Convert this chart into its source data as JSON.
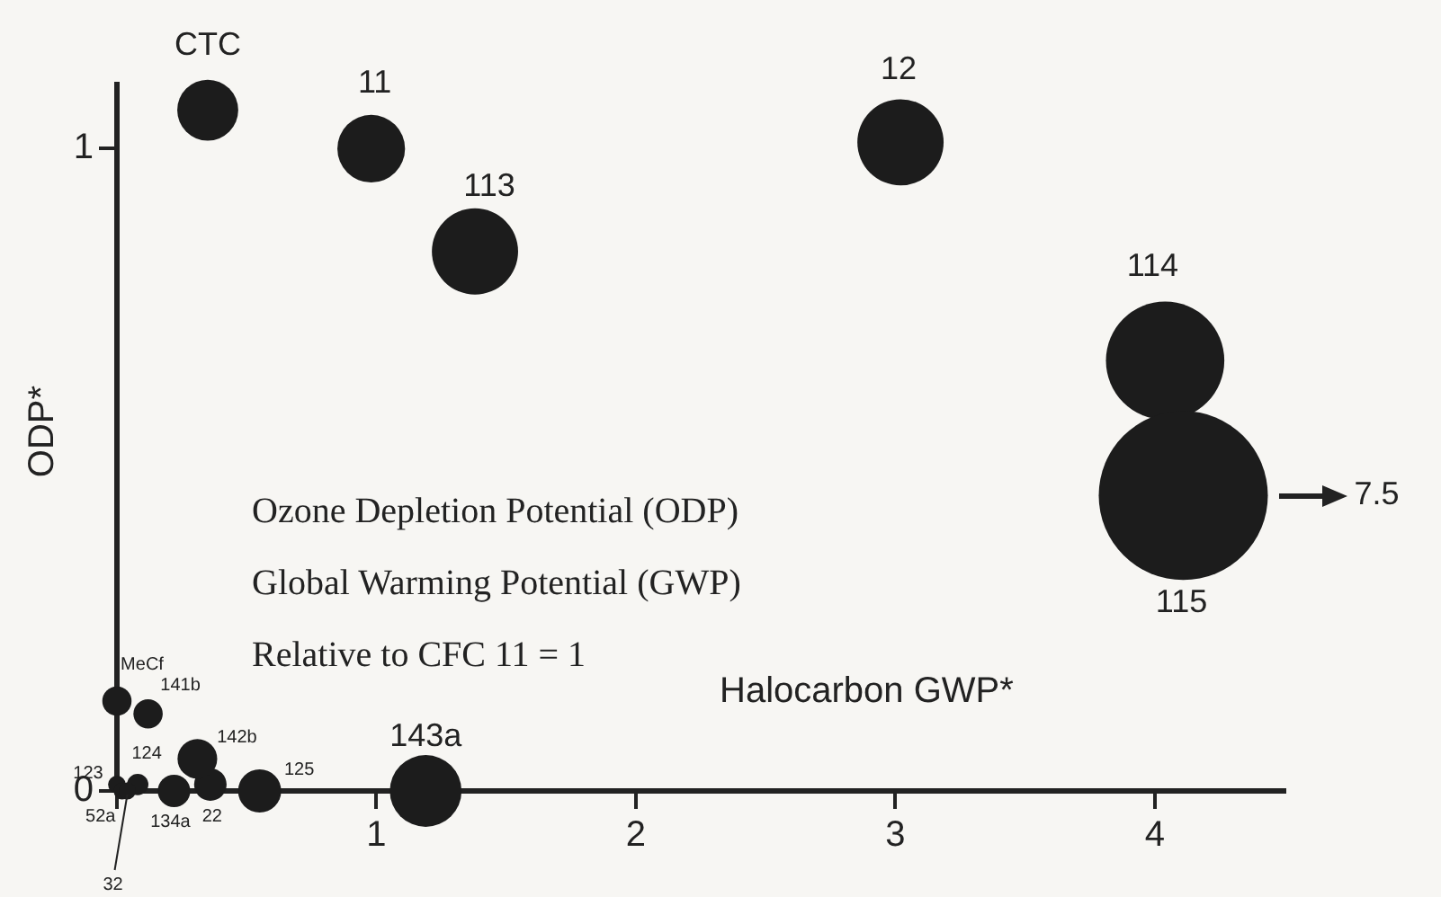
{
  "chart_data": {
    "type": "bubble",
    "xlabel": "Halocarbon GWP*",
    "ylabel": "ODP*",
    "xlim": [
      0,
      4.5
    ],
    "ylim": [
      0,
      1.1
    ],
    "xticks": [
      {
        "value": 0,
        "label": null
      },
      1,
      2,
      3,
      4
    ],
    "yticks": [
      0,
      1
    ],
    "grid": false,
    "legend": false,
    "series": [
      {
        "color": "#1c1c1c",
        "x": [
          0.35,
          0.98,
          1.38,
          3.02,
          4.04,
          4.11,
          0.0,
          0.12,
          0.0,
          0.08,
          0.02,
          0.04,
          0.22,
          0.36,
          0.31,
          0.55,
          1.19
        ],
        "values": [
          1.06,
          1.0,
          0.84,
          1.01,
          0.67,
          0.46,
          0.14,
          0.12,
          0.01,
          0.01,
          0,
          0,
          0,
          0.01,
          0.05,
          0,
          0
        ],
        "sizes": [
          0.13,
          0.16,
          0.26,
          0.26,
          0.49,
          1,
          0.03,
          0.03,
          0.011,
          0.016,
          0.01,
          0.01,
          0.037,
          0.037,
          0.055,
          0.065,
          0.18
        ]
      }
    ],
    "annotations": [
      {
        "text": "CTC",
        "x": 0.35,
        "y": 1.06
      },
      {
        "text": "11",
        "x": 0.98,
        "y": 1.0
      },
      {
        "text": "113",
        "x": 1.38,
        "y": 0.84
      },
      {
        "text": "12",
        "x": 3.02,
        "y": 1.01
      },
      {
        "text": "114",
        "x": 4.04,
        "y": 0.67
      },
      {
        "text": "115",
        "x": 4.11,
        "y": 0.46
      },
      {
        "text": "MeCf",
        "x": 0.0,
        "y": 0.14
      },
      {
        "text": "141b",
        "x": 0.12,
        "y": 0.12
      },
      {
        "text": "123",
        "x": 0.0,
        "y": 0.01
      },
      {
        "text": "124",
        "x": 0.08,
        "y": 0.01
      },
      {
        "text": "52a",
        "x": 0.02,
        "y": 0
      },
      {
        "text": "32",
        "x": 0.04,
        "y": 0
      },
      {
        "text": "134a",
        "x": 0.22,
        "y": 0
      },
      {
        "text": "22",
        "x": 0.36,
        "y": 0.01
      },
      {
        "text": "142b",
        "x": 0.31,
        "y": 0.05
      },
      {
        "text": "125",
        "x": 0.55,
        "y": 0
      },
      {
        "text": "143a",
        "x": 1.19,
        "y": 0
      },
      "7.5",
      "Ozone Depletion Potential (ODP)",
      "Global Warming Potential (GWP)",
      "Relative to CFC 11 = 1"
    ]
  }
}
